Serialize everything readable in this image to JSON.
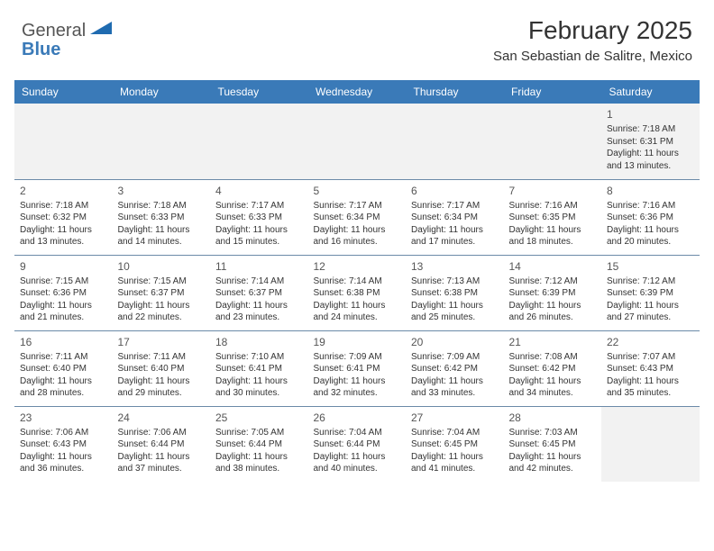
{
  "logo": {
    "word1": "General",
    "word2": "Blue"
  },
  "title": "February 2025",
  "subtitle": "San Sebastian de Salitre, Mexico",
  "colors": {
    "header_bg": "#3a7ab8",
    "header_text": "#ffffff",
    "row_border": "#6b8aa8",
    "alt_row_bg": "#f2f2f2",
    "body_text": "#333333",
    "logo_gray": "#555555",
    "logo_blue": "#3a7ab8"
  },
  "typography": {
    "title_fontsize": 28,
    "subtitle_fontsize": 15,
    "header_fontsize": 12,
    "daynum_fontsize": 12,
    "detail_fontsize": 10
  },
  "dayHeaders": [
    "Sunday",
    "Monday",
    "Tuesday",
    "Wednesday",
    "Thursday",
    "Friday",
    "Saturday"
  ],
  "weeks": [
    [
      null,
      null,
      null,
      null,
      null,
      null,
      {
        "n": "1",
        "sunrise": "Sunrise: 7:18 AM",
        "sunset": "Sunset: 6:31 PM",
        "daylight": "Daylight: 11 hours and 13 minutes."
      }
    ],
    [
      {
        "n": "2",
        "sunrise": "Sunrise: 7:18 AM",
        "sunset": "Sunset: 6:32 PM",
        "daylight": "Daylight: 11 hours and 13 minutes."
      },
      {
        "n": "3",
        "sunrise": "Sunrise: 7:18 AM",
        "sunset": "Sunset: 6:33 PM",
        "daylight": "Daylight: 11 hours and 14 minutes."
      },
      {
        "n": "4",
        "sunrise": "Sunrise: 7:17 AM",
        "sunset": "Sunset: 6:33 PM",
        "daylight": "Daylight: 11 hours and 15 minutes."
      },
      {
        "n": "5",
        "sunrise": "Sunrise: 7:17 AM",
        "sunset": "Sunset: 6:34 PM",
        "daylight": "Daylight: 11 hours and 16 minutes."
      },
      {
        "n": "6",
        "sunrise": "Sunrise: 7:17 AM",
        "sunset": "Sunset: 6:34 PM",
        "daylight": "Daylight: 11 hours and 17 minutes."
      },
      {
        "n": "7",
        "sunrise": "Sunrise: 7:16 AM",
        "sunset": "Sunset: 6:35 PM",
        "daylight": "Daylight: 11 hours and 18 minutes."
      },
      {
        "n": "8",
        "sunrise": "Sunrise: 7:16 AM",
        "sunset": "Sunset: 6:36 PM",
        "daylight": "Daylight: 11 hours and 20 minutes."
      }
    ],
    [
      {
        "n": "9",
        "sunrise": "Sunrise: 7:15 AM",
        "sunset": "Sunset: 6:36 PM",
        "daylight": "Daylight: 11 hours and 21 minutes."
      },
      {
        "n": "10",
        "sunrise": "Sunrise: 7:15 AM",
        "sunset": "Sunset: 6:37 PM",
        "daylight": "Daylight: 11 hours and 22 minutes."
      },
      {
        "n": "11",
        "sunrise": "Sunrise: 7:14 AM",
        "sunset": "Sunset: 6:37 PM",
        "daylight": "Daylight: 11 hours and 23 minutes."
      },
      {
        "n": "12",
        "sunrise": "Sunrise: 7:14 AM",
        "sunset": "Sunset: 6:38 PM",
        "daylight": "Daylight: 11 hours and 24 minutes."
      },
      {
        "n": "13",
        "sunrise": "Sunrise: 7:13 AM",
        "sunset": "Sunset: 6:38 PM",
        "daylight": "Daylight: 11 hours and 25 minutes."
      },
      {
        "n": "14",
        "sunrise": "Sunrise: 7:12 AM",
        "sunset": "Sunset: 6:39 PM",
        "daylight": "Daylight: 11 hours and 26 minutes."
      },
      {
        "n": "15",
        "sunrise": "Sunrise: 7:12 AM",
        "sunset": "Sunset: 6:39 PM",
        "daylight": "Daylight: 11 hours and 27 minutes."
      }
    ],
    [
      {
        "n": "16",
        "sunrise": "Sunrise: 7:11 AM",
        "sunset": "Sunset: 6:40 PM",
        "daylight": "Daylight: 11 hours and 28 minutes."
      },
      {
        "n": "17",
        "sunrise": "Sunrise: 7:11 AM",
        "sunset": "Sunset: 6:40 PM",
        "daylight": "Daylight: 11 hours and 29 minutes."
      },
      {
        "n": "18",
        "sunrise": "Sunrise: 7:10 AM",
        "sunset": "Sunset: 6:41 PM",
        "daylight": "Daylight: 11 hours and 30 minutes."
      },
      {
        "n": "19",
        "sunrise": "Sunrise: 7:09 AM",
        "sunset": "Sunset: 6:41 PM",
        "daylight": "Daylight: 11 hours and 32 minutes."
      },
      {
        "n": "20",
        "sunrise": "Sunrise: 7:09 AM",
        "sunset": "Sunset: 6:42 PM",
        "daylight": "Daylight: 11 hours and 33 minutes."
      },
      {
        "n": "21",
        "sunrise": "Sunrise: 7:08 AM",
        "sunset": "Sunset: 6:42 PM",
        "daylight": "Daylight: 11 hours and 34 minutes."
      },
      {
        "n": "22",
        "sunrise": "Sunrise: 7:07 AM",
        "sunset": "Sunset: 6:43 PM",
        "daylight": "Daylight: 11 hours and 35 minutes."
      }
    ],
    [
      {
        "n": "23",
        "sunrise": "Sunrise: 7:06 AM",
        "sunset": "Sunset: 6:43 PM",
        "daylight": "Daylight: 11 hours and 36 minutes."
      },
      {
        "n": "24",
        "sunrise": "Sunrise: 7:06 AM",
        "sunset": "Sunset: 6:44 PM",
        "daylight": "Daylight: 11 hours and 37 minutes."
      },
      {
        "n": "25",
        "sunrise": "Sunrise: 7:05 AM",
        "sunset": "Sunset: 6:44 PM",
        "daylight": "Daylight: 11 hours and 38 minutes."
      },
      {
        "n": "26",
        "sunrise": "Sunrise: 7:04 AM",
        "sunset": "Sunset: 6:44 PM",
        "daylight": "Daylight: 11 hours and 40 minutes."
      },
      {
        "n": "27",
        "sunrise": "Sunrise: 7:04 AM",
        "sunset": "Sunset: 6:45 PM",
        "daylight": "Daylight: 11 hours and 41 minutes."
      },
      {
        "n": "28",
        "sunrise": "Sunrise: 7:03 AM",
        "sunset": "Sunset: 6:45 PM",
        "daylight": "Daylight: 11 hours and 42 minutes."
      },
      null
    ]
  ]
}
